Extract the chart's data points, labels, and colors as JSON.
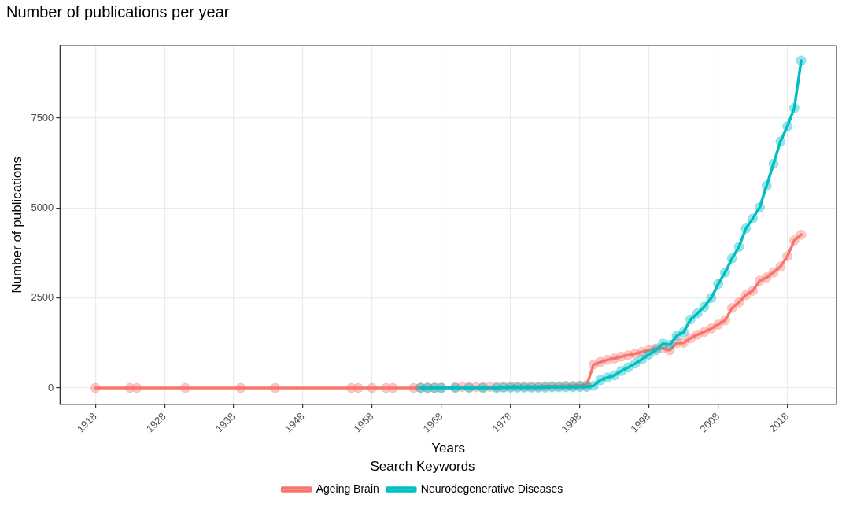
{
  "chart_data": {
    "type": "line",
    "title": "Number of publications per year",
    "xlabel": "Years",
    "ylabel": "Number of publications",
    "legend_title": "Search Keywords",
    "series": [
      {
        "name": "Ageing Brain",
        "color": "#f8766d",
        "x": [
          1918,
          1923,
          1924,
          1931,
          1939,
          1944,
          1955,
          1956,
          1958,
          1960,
          1961,
          1964,
          1965,
          1966,
          1967,
          1968,
          1970,
          1971,
          1972,
          1973,
          1974,
          1975,
          1976,
          1977,
          1978,
          1979,
          1980,
          1981,
          1982,
          1983,
          1984,
          1985,
          1986,
          1987,
          1988,
          1989,
          1990,
          1991,
          1992,
          1993,
          1994,
          1995,
          1996,
          1997,
          1998,
          1999,
          2000,
          2001,
          2002,
          2003,
          2004,
          2005,
          2006,
          2007,
          2008,
          2009,
          2010,
          2011,
          2012,
          2013,
          2014,
          2015,
          2016,
          2017,
          2018,
          2019,
          2020
        ],
        "values": [
          0,
          0,
          0,
          0,
          0,
          0,
          0,
          0,
          0,
          0,
          0,
          0,
          10,
          10,
          10,
          10,
          20,
          30,
          30,
          20,
          20,
          30,
          30,
          30,
          40,
          40,
          40,
          40,
          40,
          50,
          50,
          50,
          60,
          60,
          70,
          80,
          650,
          720,
          780,
          820,
          870,
          910,
          950,
          1000,
          1050,
          1100,
          1100,
          1050,
          1250,
          1250,
          1380,
          1480,
          1560,
          1650,
          1760,
          1880,
          2220,
          2380,
          2580,
          2700,
          2980,
          3070,
          3210,
          3370,
          3660,
          4100,
          4260
        ]
      },
      {
        "name": "Neurodegenerative Diseases",
        "color": "#00bfc4",
        "x": [
          1965,
          1966,
          1967,
          1968,
          1970,
          1972,
          1974,
          1976,
          1977,
          1978,
          1979,
          1980,
          1981,
          1982,
          1983,
          1984,
          1985,
          1986,
          1987,
          1988,
          1989,
          1990,
          1991,
          1992,
          1993,
          1994,
          1995,
          1996,
          1997,
          1998,
          1999,
          2000,
          2001,
          2002,
          2003,
          2004,
          2005,
          2006,
          2007,
          2008,
          2009,
          2010,
          2011,
          2012,
          2013,
          2014,
          2015,
          2016,
          2017,
          2018,
          2019,
          2020
        ],
        "values": [
          0,
          0,
          0,
          0,
          0,
          0,
          0,
          0,
          10,
          10,
          10,
          10,
          10,
          10,
          10,
          20,
          20,
          20,
          20,
          30,
          30,
          60,
          220,
          290,
          350,
          470,
          570,
          680,
          800,
          930,
          1050,
          1230,
          1200,
          1450,
          1550,
          1900,
          2070,
          2260,
          2500,
          2890,
          3210,
          3600,
          3920,
          4430,
          4710,
          5020,
          5620,
          6230,
          6850,
          7270,
          7780,
          9100
        ]
      }
    ],
    "xlim": [
      1912.9,
      2025.1
    ],
    "xticks": [
      1918,
      1928,
      1938,
      1948,
      1958,
      1968,
      1978,
      1988,
      1998,
      2008,
      2018
    ],
    "ylim": [
      -453,
      9513
    ],
    "yticks": [
      0,
      2500,
      5000,
      7500
    ],
    "grid": true,
    "legend": "bottom",
    "marker": "circle",
    "line_style": "solid"
  }
}
